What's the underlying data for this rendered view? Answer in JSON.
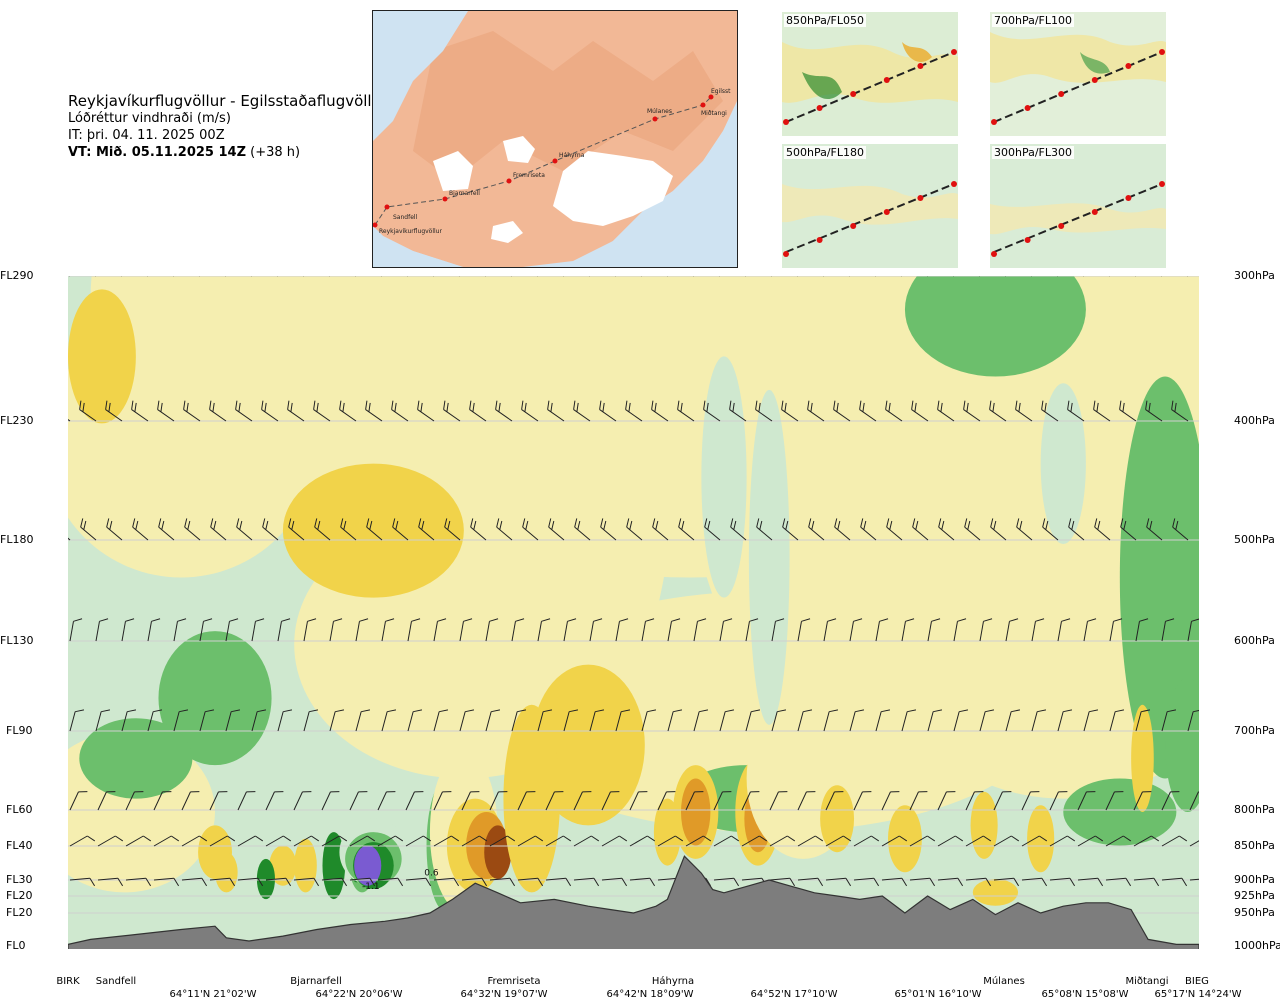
{
  "header": {
    "route": "Reykjavíkurflugvöllur - Egilsstaðaflugvöllur",
    "parameter": "Lóðréttur vindhraði (m/s)",
    "issue_time": "IT: þri. 04. 11. 2025 00Z",
    "valid_time": "VT: Mið. 05.11.2025 14Z",
    "lead_time": "(+38 h)"
  },
  "map": {
    "points": [
      {
        "label": "Reykjavíkurflugvöllur"
      },
      {
        "label": "Sandfell"
      },
      {
        "label": "Bjarnarfell"
      },
      {
        "label": "Fremriseta"
      },
      {
        "label": "Háhyrna"
      },
      {
        "label": "Múlanes"
      },
      {
        "label": "Miðtangi"
      },
      {
        "label": "Egilsst"
      }
    ],
    "colors": {
      "sea": "#cfe3f2",
      "land": "#f2b896",
      "ice": "#ffffff",
      "route": "#555555",
      "point": "#e01010"
    }
  },
  "mini_maps": [
    {
      "label": "850hPa/FL050"
    },
    {
      "label": "700hPa/FL100"
    },
    {
      "label": "500hPa/FL180"
    },
    {
      "label": "300hPa/FL300"
    }
  ],
  "chart_data": {
    "type": "heatmap",
    "title": "Lóðréttur vindhraði (m/s)",
    "xlabel": "",
    "ylabel": "",
    "flight_levels": [
      {
        "label": "FL290",
        "hpa": "300hPa"
      },
      {
        "label": "FL230",
        "hpa": "400hPa"
      },
      {
        "label": "FL180",
        "hpa": "500hPa"
      },
      {
        "label": "FL130",
        "hpa": "600hPa"
      },
      {
        "label": "FL90",
        "hpa": "700hPa"
      },
      {
        "label": "FL60",
        "hpa": "800hPa"
      },
      {
        "label": "FL40",
        "hpa": "850hPa"
      },
      {
        "label": "FL30",
        "hpa": "900hPa"
      },
      {
        "label": "FL20",
        "hpa": "925hPa"
      },
      {
        "label": "FL20",
        "hpa": "950hPa"
      },
      {
        "label": "FL0",
        "hpa": "1000hPa"
      }
    ],
    "locations": [
      "BIRK",
      "Sandfell",
      "Bjarnarfell",
      "Fremriseta",
      "Háhyrna",
      "Múlanes",
      "Miðtangi",
      "BIEG"
    ],
    "coordinates": [
      "64°11'N 21°02'W",
      "64°22'N 20°06'W",
      "64°32'N 19°07'W",
      "64°42'N 18°09'W",
      "64°52'N 17°10'W",
      "65°01'N 16°10'W",
      "65°08'N 15°08'W",
      "65°17'N 14°24'W"
    ],
    "route_fraction": [
      0,
      0.03,
      0.22,
      0.4,
      0.54,
      0.81,
      0.96,
      1
    ],
    "coordinate_fraction": [
      0.12,
      0.25,
      0.38,
      0.51,
      0.64,
      0.77,
      0.9,
      1
    ],
    "terrain_elevation_fl": [
      [
        0.0,
        1
      ],
      [
        0.02,
        4
      ],
      [
        0.06,
        7
      ],
      [
        0.1,
        10
      ],
      [
        0.13,
        12
      ],
      [
        0.14,
        5
      ],
      [
        0.16,
        3
      ],
      [
        0.19,
        6
      ],
      [
        0.22,
        10
      ],
      [
        0.25,
        13
      ],
      [
        0.28,
        15
      ],
      [
        0.3,
        17
      ],
      [
        0.32,
        20
      ],
      [
        0.34,
        24
      ],
      [
        0.36,
        29
      ],
      [
        0.38,
        26
      ],
      [
        0.4,
        23
      ],
      [
        0.43,
        24
      ],
      [
        0.46,
        22
      ],
      [
        0.48,
        21
      ],
      [
        0.5,
        20
      ],
      [
        0.52,
        22
      ],
      [
        0.53,
        24
      ],
      [
        0.545,
        37
      ],
      [
        0.56,
        32
      ],
      [
        0.57,
        27
      ],
      [
        0.58,
        26
      ],
      [
        0.6,
        28
      ],
      [
        0.62,
        30
      ],
      [
        0.64,
        28
      ],
      [
        0.66,
        26
      ],
      [
        0.68,
        25
      ],
      [
        0.7,
        24
      ],
      [
        0.72,
        25
      ],
      [
        0.74,
        20
      ],
      [
        0.76,
        25
      ],
      [
        0.78,
        21
      ],
      [
        0.8,
        24
      ],
      [
        0.82,
        19
      ],
      [
        0.84,
        23
      ],
      [
        0.86,
        20
      ],
      [
        0.88,
        22
      ],
      [
        0.9,
        23
      ],
      [
        0.92,
        23
      ],
      [
        0.94,
        21
      ],
      [
        0.955,
        4
      ],
      [
        0.98,
        1
      ],
      [
        1.0,
        1
      ]
    ],
    "contour_levels_ms": [
      -1.0,
      -0.6,
      -0.3,
      -0.1,
      0.1,
      0.3,
      0.6,
      1.0
    ],
    "contour_colors": [
      "#7a5bd1",
      "#1f8a2a",
      "#6cbf6c",
      "#cfe8cf",
      "#f5eeb0",
      "#f1d34a",
      "#e09a28",
      "#9b4a12"
    ],
    "annotations": [
      "-1.1",
      "0.6"
    ],
    "grid": true,
    "legend": "none"
  }
}
